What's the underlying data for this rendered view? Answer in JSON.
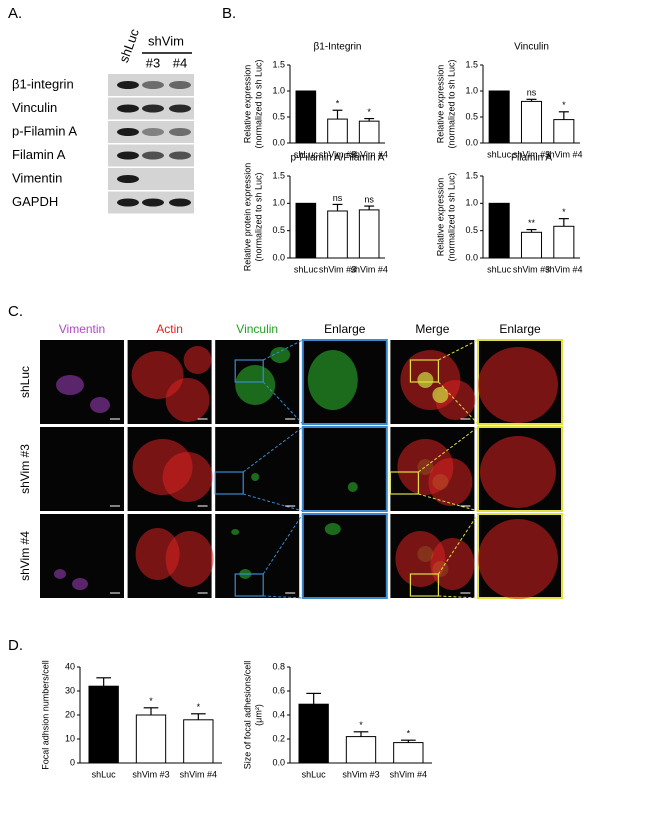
{
  "panel_labels": [
    "A.",
    "B.",
    "C.",
    "D."
  ],
  "blot": {
    "control": "shLuc",
    "group": "shVim",
    "subs": [
      "#3",
      "#4"
    ],
    "rows": [
      "β1-integrin",
      "Vinculin",
      "p-Filamin A",
      "Filamin A",
      "Vimentin",
      "GAPDH"
    ]
  },
  "microscopy": {
    "columns": [
      {
        "label": "Vimentin",
        "color": "#b048c8"
      },
      {
        "label": "Actin",
        "color": "#e02020"
      },
      {
        "label": "Vinculin",
        "color": "#20a020"
      },
      {
        "label": "Enlarge",
        "color": "#000000"
      },
      {
        "label": "Merge",
        "color": "#000000"
      },
      {
        "label": "Enlarge",
        "color": "#000000"
      }
    ],
    "rows": [
      "shLuc",
      "shVim #3",
      "shVim #4"
    ]
  },
  "chart_data": [
    {
      "type": "bar",
      "title": "β1-Integrin",
      "ylabel": [
        "Relative expression",
        "(normalized to sh Luc)"
      ],
      "categories": [
        "shLuc",
        "shVim #3",
        "shVim #4"
      ],
      "values": [
        1.0,
        0.46,
        0.42
      ],
      "errors": [
        null,
        0.17,
        0.05
      ],
      "annotations": [
        null,
        "*",
        "*"
      ],
      "colors": [
        "#000000",
        "#ffffff",
        "#ffffff"
      ],
      "ylim": [
        0,
        1.5
      ],
      "yticks": [
        {
          "value": 0,
          "label": "0.0"
        },
        0.5,
        {
          "value": 1,
          "label": "1.0"
        },
        1.5
      ]
    },
    {
      "type": "bar",
      "title": "Vinculin",
      "ylabel": [
        "Relative expression",
        "(normalized to sh Luc)"
      ],
      "categories": [
        "shLuc",
        "shVim #3",
        "shVim #4"
      ],
      "values": [
        1.0,
        0.8,
        0.45
      ],
      "errors": [
        null,
        0.04,
        0.15
      ],
      "annotations": [
        null,
        "ns",
        "*"
      ],
      "colors": [
        "#000000",
        "#ffffff",
        "#ffffff"
      ],
      "ylim": [
        0,
        1.5
      ],
      "yticks": [
        {
          "value": 0,
          "label": "0.0"
        },
        0.5,
        {
          "value": 1,
          "label": "1.0"
        },
        1.5
      ]
    },
    {
      "type": "bar",
      "title": "p-Filamin A/Filamin A",
      "ylabel": [
        "Relative protein expression",
        "(normalized to sh Luc)"
      ],
      "categories": [
        "shLuc",
        "shVim #3",
        "shVim #4"
      ],
      "values": [
        1.0,
        0.86,
        0.88
      ],
      "errors": [
        null,
        0.12,
        0.07
      ],
      "annotations": [
        null,
        "ns",
        "ns"
      ],
      "colors": [
        "#000000",
        "#ffffff",
        "#ffffff"
      ],
      "ylim": [
        0,
        1.5
      ],
      "yticks": [
        {
          "value": 0,
          "label": "0.0"
        },
        0.5,
        {
          "value": 1,
          "label": "1.0"
        },
        1.5
      ]
    },
    {
      "type": "bar",
      "title": "Filamin A",
      "ylabel": [
        "Relative expression",
        "(normalized to sh Luc)"
      ],
      "categories": [
        "shLuc",
        "shVim #3",
        "shVim #4"
      ],
      "values": [
        1.0,
        0.47,
        0.58
      ],
      "errors": [
        null,
        0.05,
        0.14
      ],
      "annotations": [
        null,
        "**",
        "*"
      ],
      "colors": [
        "#000000",
        "#ffffff",
        "#ffffff"
      ],
      "ylim": [
        0,
        1.5
      ],
      "yticks": [
        {
          "value": 0,
          "label": "0.0"
        },
        0.5,
        {
          "value": 1,
          "label": "1.0"
        },
        1.5
      ]
    },
    {
      "type": "bar",
      "ylabel": [
        "Focal adhsion numbers/cell"
      ],
      "categories": [
        "shLuc",
        "shVim #3",
        "shVim #4"
      ],
      "values": [
        32,
        20,
        18
      ],
      "errors": [
        3.5,
        3,
        2.5
      ],
      "annotations": [
        null,
        "*",
        "*"
      ],
      "colors": [
        "#000000",
        "#ffffff",
        "#ffffff"
      ],
      "ylim": [
        0,
        40
      ],
      "yticks": [
        0,
        10,
        20,
        30,
        40
      ]
    },
    {
      "type": "bar",
      "ylabel": [
        "Size of focal adhesions/cell",
        "(μm²)"
      ],
      "categories": [
        "shLuc",
        "shVim #3",
        "shVim #4"
      ],
      "values": [
        0.49,
        0.22,
        0.17
      ],
      "errors": [
        0.09,
        0.04,
        0.02
      ],
      "annotations": [
        null,
        "*",
        "*"
      ],
      "colors": [
        "#000000",
        "#ffffff",
        "#ffffff"
      ],
      "ylim": [
        0,
        0.8
      ],
      "yticks": [
        {
          "value": 0,
          "label": "0.0"
        },
        0.2,
        0.4,
        0.6,
        0.8
      ]
    }
  ]
}
